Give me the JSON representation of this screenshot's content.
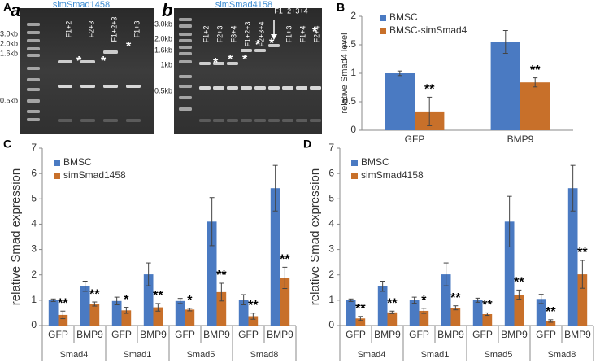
{
  "panels": {
    "A": "A",
    "a": "a",
    "b": "b",
    "B": "B",
    "C": "C",
    "D": "D"
  },
  "gels": {
    "star": "*",
    "gel_a": {
      "title": "simSmad1458",
      "sizes": [
        "3.0kb",
        "2.0kb",
        "1.6kb",
        "0.5kb"
      ],
      "lanes": [
        "F1+2",
        "F2+3",
        "F1+2+3",
        "F1+3"
      ]
    },
    "gel_b": {
      "title": "simSmad4158",
      "sizes": [
        "3.0kb",
        "2.0kb",
        "1.6kb",
        "1kb",
        "0.5kb"
      ],
      "lanes": [
        "F1+2",
        "F2+3",
        "F3+4",
        "F1+2+3",
        "F2+3+4",
        "F1+2+3+4",
        "F1+3",
        "F1+4",
        "F2+4"
      ]
    }
  },
  "chart_data": [
    {
      "type": "bar",
      "ylabel": "relative Smad4 level",
      "categories": [
        "GFP",
        "BMP9"
      ],
      "series": [
        {
          "name": "BMSC",
          "color": "#4a7ac2",
          "values": [
            1.0,
            1.55
          ],
          "errors": [
            0.04,
            0.2
          ]
        },
        {
          "name": "BMSC-simSmad4",
          "color": "#c8702a",
          "values": [
            0.33,
            0.84
          ],
          "errors": [
            0.25,
            0.08
          ],
          "annotations": [
            "**",
            "**"
          ]
        }
      ],
      "ylim": [
        0,
        2
      ],
      "yticks": [
        0,
        0.5,
        1,
        1.5,
        2
      ],
      "legend": "upper left"
    },
    {
      "type": "bar",
      "ylabel": "relative Smad expression",
      "categories": [
        "GFP",
        "BMP9",
        "GFP",
        "BMP9",
        "GFP",
        "BMP9",
        "GFP",
        "BMP9"
      ],
      "groups": [
        "Smad4",
        "Smad1",
        "Smad5",
        "Smad8"
      ],
      "series": [
        {
          "name": "BMSC",
          "color": "#4a7ac2",
          "values": [
            1.0,
            1.55,
            0.97,
            2.02,
            0.97,
            4.1,
            1.02,
            5.42
          ],
          "errors": [
            0.05,
            0.2,
            0.15,
            0.45,
            0.1,
            0.95,
            0.2,
            0.9
          ]
        },
        {
          "name": "simSmad1458",
          "color": "#c8702a",
          "values": [
            0.42,
            0.85,
            0.6,
            0.72,
            0.63,
            1.32,
            0.37,
            1.88
          ],
          "errors": [
            0.15,
            0.08,
            0.12,
            0.15,
            0.05,
            0.35,
            0.12,
            0.42
          ],
          "annotations": [
            "**",
            "**",
            "*",
            "**",
            "*",
            "**",
            "**",
            "**"
          ]
        }
      ],
      "ylim": [
        0,
        7
      ],
      "yticks": [
        0,
        1,
        2,
        3,
        4,
        5,
        6,
        7
      ],
      "legend": "upper left"
    },
    {
      "type": "bar",
      "ylabel": "relative Smad expression",
      "categories": [
        "GFP",
        "BMP9",
        "GFP",
        "BMP9",
        "GFP",
        "BMP9",
        "GFP",
        "BMP9"
      ],
      "groups": [
        "Smad4",
        "Smad1",
        "Smad5",
        "Smad8"
      ],
      "series": [
        {
          "name": "BMSC",
          "color": "#4a7ac2",
          "values": [
            1.0,
            1.55,
            1.0,
            2.02,
            1.0,
            4.1,
            1.05,
            5.42
          ],
          "errors": [
            0.05,
            0.2,
            0.12,
            0.45,
            0.08,
            1.0,
            0.18,
            0.9
          ]
        },
        {
          "name": "simSmad4158",
          "color": "#c8702a",
          "values": [
            0.28,
            0.52,
            0.58,
            0.7,
            0.45,
            1.22,
            0.18,
            2.02
          ],
          "errors": [
            0.08,
            0.05,
            0.1,
            0.08,
            0.05,
            0.18,
            0.05,
            0.55
          ],
          "annotations": [
            "**",
            "**",
            "*",
            "**",
            "**",
            "**",
            "**",
            "**"
          ]
        }
      ],
      "ylim": [
        0,
        7
      ],
      "yticks": [
        0,
        1,
        2,
        3,
        4,
        5,
        6,
        7
      ],
      "legend": "upper left"
    }
  ]
}
